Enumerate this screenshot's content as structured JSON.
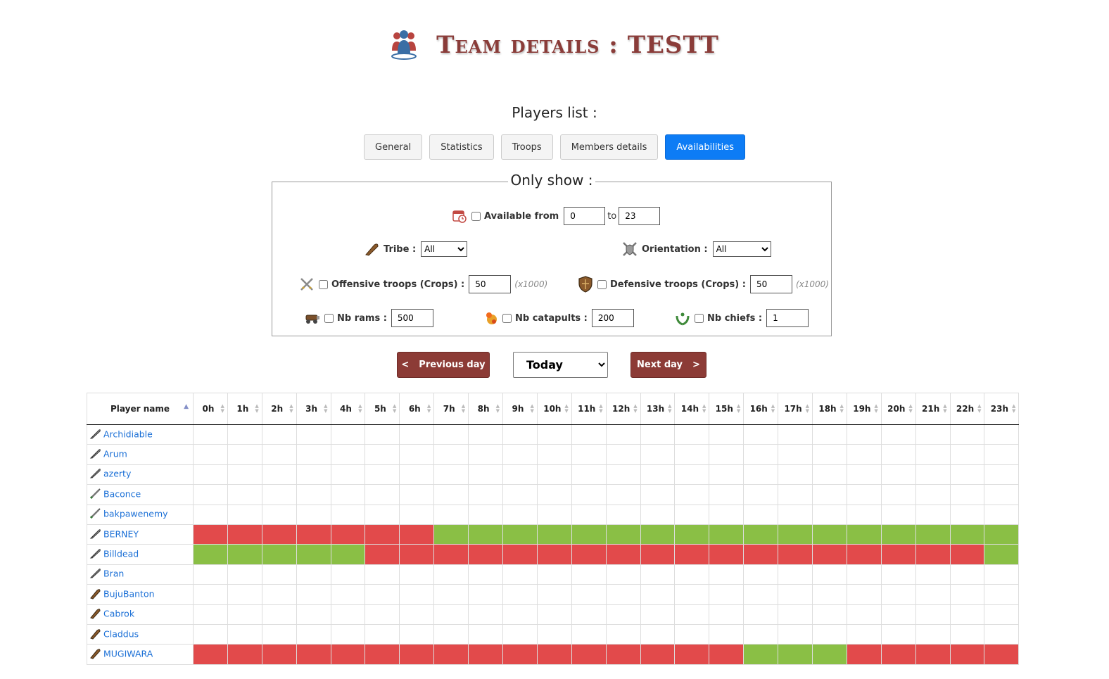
{
  "page": {
    "title": "Team details : TESTT",
    "players_list_label": "Players list :"
  },
  "tabs": [
    {
      "label": "General",
      "active": false
    },
    {
      "label": "Statistics",
      "active": false
    },
    {
      "label": "Troops",
      "active": false
    },
    {
      "label": "Members details",
      "active": false
    },
    {
      "label": "Availabilities",
      "active": true
    }
  ],
  "filters": {
    "legend": "Only show :",
    "available_from_label": "Available from",
    "available_from_value": "0",
    "to_label": "to",
    "available_to_value": "23",
    "tribe_label": "Tribe :",
    "tribe_value": "All",
    "orientation_label": "Orientation :",
    "orientation_value": "All",
    "offensive_label": "Offensive troops (Crops) :",
    "offensive_value": "50",
    "offensive_hint": "(x1000)",
    "defensive_label": "Defensive troops (Crops) :",
    "defensive_value": "50",
    "defensive_hint": "(x1000)",
    "rams_label": "Nb rams :",
    "rams_value": "500",
    "catapults_label": "Nb catapults :",
    "catapults_value": "200",
    "chiefs_label": "Nb chiefs :",
    "chiefs_value": "1"
  },
  "day_nav": {
    "prev_label": "Previous day",
    "prev_arrow": "<",
    "day_value": "Today",
    "next_label": "Next day",
    "next_arrow": ">"
  },
  "table": {
    "name_header": "Player name",
    "hours": [
      "0h",
      "1h",
      "2h",
      "3h",
      "4h",
      "5h",
      "6h",
      "7h",
      "8h",
      "9h",
      "10h",
      "11h",
      "12h",
      "13h",
      "14h",
      "15h",
      "16h",
      "17h",
      "18h",
      "19h",
      "20h",
      "21h",
      "22h",
      "23h"
    ],
    "rows": [
      {
        "name": "Archidiable",
        "tribe_icon": "feather-icon",
        "slots": "........................"
      },
      {
        "name": "Arum",
        "tribe_icon": "feather-icon",
        "slots": "........................"
      },
      {
        "name": "azerty",
        "tribe_icon": "feather-icon",
        "slots": "........................"
      },
      {
        "name": "Baconce",
        "tribe_icon": "sword-icon",
        "slots": "........................"
      },
      {
        "name": "bakpawenemy",
        "tribe_icon": "sword-icon",
        "slots": "........................"
      },
      {
        "name": "BERNEY",
        "tribe_icon": "feather-icon",
        "slots": "RRRRRRRGGGGGGGGGGGGGGGGG"
      },
      {
        "name": "Billdead",
        "tribe_icon": "feather-icon",
        "slots": "GGGGGRRRRRRRRRRRRRRRRRRG"
      },
      {
        "name": "Bran",
        "tribe_icon": "feather-icon",
        "slots": "........................"
      },
      {
        "name": "BujuBanton",
        "tribe_icon": "club-icon",
        "slots": "........................"
      },
      {
        "name": "Cabrok",
        "tribe_icon": "club-icon",
        "slots": "........................"
      },
      {
        "name": "Claddus",
        "tribe_icon": "club-icon",
        "slots": "........................"
      },
      {
        "name": "MUGIWARA",
        "tribe_icon": "club-icon",
        "slots": "RRRRRRRRRRRRRRRRGGGRRRRR"
      }
    ]
  },
  "colors": {
    "title": "#8a3c39",
    "tab_active": "#0d7cf5",
    "day_button": "#8c3b36",
    "available": "#8abf45",
    "unavailable": "#e24a4b",
    "link": "#1a6fd6"
  }
}
